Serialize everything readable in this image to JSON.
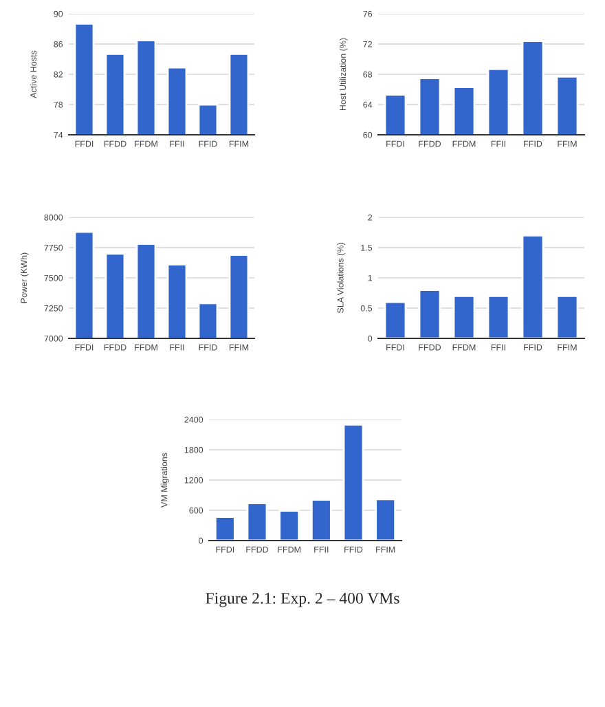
{
  "chart_data": [
    {
      "type": "bar",
      "ylabel": "Active Hosts",
      "categories": [
        "FFDI",
        "FFDD",
        "FFDM",
        "FFII",
        "FFID",
        "FFIM"
      ],
      "values": [
        88.7,
        84.7,
        86.5,
        82.9,
        78.0,
        84.7
      ],
      "color": "#3366cc",
      "ylim": [
        74,
        90
      ],
      "yticks": [
        74,
        78,
        82,
        86,
        90
      ],
      "grid": "y"
    },
    {
      "type": "bar",
      "ylabel": "Host Utilization (%)",
      "categories": [
        "FFDI",
        "FFDD",
        "FFDM",
        "FFII",
        "FFID",
        "FFIM"
      ],
      "values": [
        65.3,
        67.5,
        66.3,
        68.7,
        72.4,
        67.7
      ],
      "color": "#3366cc",
      "ylim": [
        60,
        76
      ],
      "yticks": [
        60,
        64,
        68,
        72,
        76
      ],
      "grid": "y"
    },
    {
      "type": "bar",
      "ylabel": "Power (KWh)",
      "categories": [
        "FFDI",
        "FFDD",
        "FFDM",
        "FFII",
        "FFID",
        "FFIM"
      ],
      "values": [
        7880,
        7700,
        7780,
        7610,
        7290,
        7690
      ],
      "color": "#3366cc",
      "ylim": [
        7000,
        8000
      ],
      "yticks": [
        7000,
        7250,
        7500,
        7750,
        8000
      ],
      "grid": "y"
    },
    {
      "type": "bar",
      "ylabel": "SLA Violations (%)",
      "categories": [
        "FFDI",
        "FFDD",
        "FFDM",
        "FFII",
        "FFID",
        "FFIM"
      ],
      "values": [
        0.6,
        0.8,
        0.7,
        0.7,
        1.7,
        0.7
      ],
      "color": "#3366cc",
      "ylim": [
        0,
        2
      ],
      "yticks": [
        0,
        0.5,
        1,
        1.5,
        2
      ],
      "grid": "y"
    },
    {
      "type": "bar",
      "ylabel": "VM Migrations",
      "categories": [
        "FFDI",
        "FFDD",
        "FFDM",
        "FFII",
        "FFID",
        "FFIM"
      ],
      "values": [
        470,
        740,
        590,
        810,
        2300,
        820
      ],
      "color": "#3366cc",
      "ylim": [
        0,
        2400
      ],
      "yticks": [
        0,
        600,
        1200,
        1800,
        2400
      ],
      "grid": "y",
      "annotations": [
        "Figure 2.1: Exp. 2 – 400 VMs"
      ]
    }
  ]
}
